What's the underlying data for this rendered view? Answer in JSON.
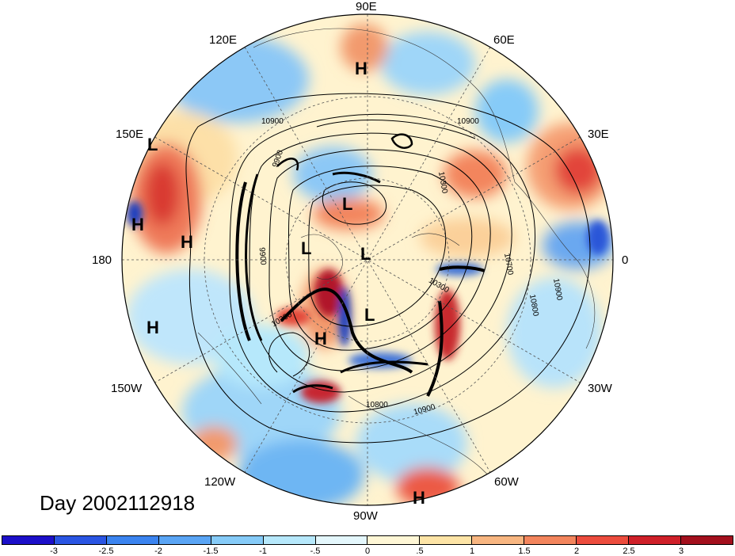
{
  "title": "Day 2002112918",
  "longitude_labels": {
    "lon_90E": "90E",
    "lon_120E": "120E",
    "lon_60E": "60E",
    "lon_150E": "150E",
    "lon_30E": "30E",
    "lon_180": "180",
    "lon_0": "0",
    "lon_150W": "150W",
    "lon_30W": "30W",
    "lon_120W": "120W",
    "lon_60W": "60W",
    "lon_90W": "90W"
  },
  "pressure_centers": [
    "H",
    "L",
    "H",
    "H",
    "L",
    "L",
    "L",
    "H",
    "L",
    "H",
    "H"
  ],
  "contour_labels": [
    "10900",
    "10900",
    "10300",
    "10700",
    "10800",
    "10900",
    "10300",
    "10900",
    "10800",
    "9900",
    "9900",
    "10300"
  ],
  "colorbar": {
    "colors": [
      "#1c0fc9",
      "#2a55e3",
      "#3b84f0",
      "#5aa5f5",
      "#86cbf8",
      "#b6e8fb",
      "#e4f7fc",
      "#fff7d6",
      "#fde4a6",
      "#f8b681",
      "#f3855d",
      "#ec4c3d",
      "#cf2029",
      "#a3101d"
    ],
    "ticks": [
      "-3",
      "-2.5",
      "-2",
      "-1.5",
      "-1",
      "-.5",
      "0",
      ".5",
      "1",
      "1.5",
      "2",
      "2.5",
      "3"
    ]
  }
}
